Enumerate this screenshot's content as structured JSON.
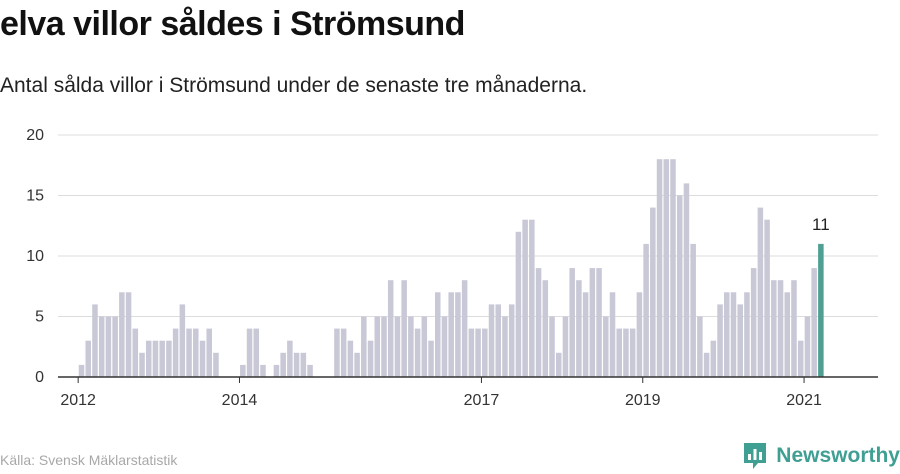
{
  "header": {
    "title": "elva villor såldes i Strömsund",
    "subtitle": "Antal sålda villor i Strömsund under de senaste tre månaderna."
  },
  "footer": {
    "source": "Källa: Svensk Mäklarstatistik",
    "brand": "Newsworthy"
  },
  "colors": {
    "bar": "#c8c8d6",
    "highlight": "#4f9f92",
    "grid": "#dddddd",
    "axis": "#333333",
    "brand": "#3f9f93"
  },
  "chart_data": {
    "type": "bar",
    "ylim": [
      0,
      20
    ],
    "yticks": [
      0,
      5,
      10,
      15,
      20
    ],
    "x_start_month": "2011-10",
    "x_end_month": "2021-12",
    "xticks": [
      {
        "label": "2012",
        "month": "2012-01"
      },
      {
        "label": "2014",
        "month": "2014-01"
      },
      {
        "label": "2017",
        "month": "2017-01"
      },
      {
        "label": "2019",
        "month": "2019-01"
      },
      {
        "label": "2021",
        "month": "2021-01"
      }
    ],
    "first_month": "2011-12",
    "values": [
      0,
      1,
      3,
      6,
      5,
      5,
      5,
      7,
      7,
      4,
      2,
      3,
      3,
      3,
      3,
      4,
      6,
      4,
      4,
      3,
      4,
      2,
      0,
      0,
      0,
      1,
      4,
      4,
      1,
      0,
      1,
      2,
      3,
      2,
      2,
      1,
      null,
      null,
      null,
      4,
      4,
      3,
      2,
      5,
      3,
      5,
      5,
      8,
      5,
      8,
      5,
      4,
      5,
      3,
      7,
      5,
      7,
      7,
      8,
      4,
      4,
      4,
      6,
      6,
      5,
      6,
      12,
      13,
      13,
      9,
      8,
      5,
      2,
      5,
      9,
      8,
      7,
      9,
      9,
      5,
      7,
      4,
      4,
      4,
      7,
      11,
      14,
      18,
      18,
      18,
      15,
      16,
      11,
      5,
      2,
      3,
      6,
      7,
      7,
      6,
      7,
      9,
      14,
      13,
      8,
      8,
      7,
      8,
      3,
      5,
      9,
      11
    ],
    "annotations": [
      {
        "label": "11",
        "value": 11
      }
    ],
    "highlight_last": true
  }
}
